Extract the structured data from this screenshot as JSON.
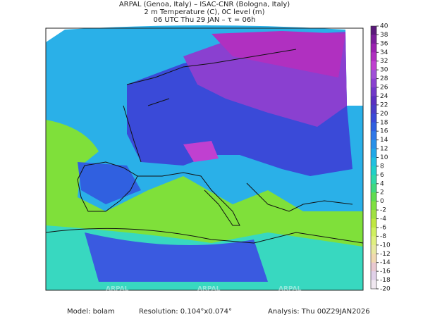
{
  "header": {
    "line1": "ARPAL (Genoa, Italy)  –  ISAC-CNR (Bologna, Italy)",
    "line2": "2 m Temperature (C), 0C level (m)",
    "line3": "06 UTC Thu 29 JAN  –  τ = 06h"
  },
  "watermark": "ARPAL",
  "colorbar": {
    "ticks": [
      40,
      38,
      36,
      34,
      32,
      30,
      28,
      26,
      24,
      22,
      20,
      18,
      16,
      14,
      12,
      10,
      8,
      6,
      4,
      2,
      0,
      -2,
      -4,
      -6,
      -8,
      -10,
      -12,
      -14,
      -16,
      -18,
      -20
    ],
    "colors": [
      "#5a1a7a",
      "#7a1e9a",
      "#9a22b0",
      "#b030c0",
      "#c040d0",
      "#a050d8",
      "#8a40d0",
      "#7038c8",
      "#5a30c0",
      "#4a3cc8",
      "#3a4ad8",
      "#3060e0",
      "#3078e8",
      "#2890e8",
      "#20a8e8",
      "#20c0e0",
      "#20d0c8",
      "#30d8a8",
      "#40d880",
      "#60dc50",
      "#80e040",
      "#a0e040",
      "#c0e840",
      "#d0f060",
      "#e0f080",
      "#e8e8a0",
      "#f0d8b0",
      "#e8c8d0",
      "#e0d0e8",
      "#f0e8f0"
    ]
  },
  "footer": {
    "model": "Model: bolam",
    "resolution": "Resolution: 0.104°x0.074°",
    "analysis": "Analysis: Thu 00Z29JAN2026"
  }
}
